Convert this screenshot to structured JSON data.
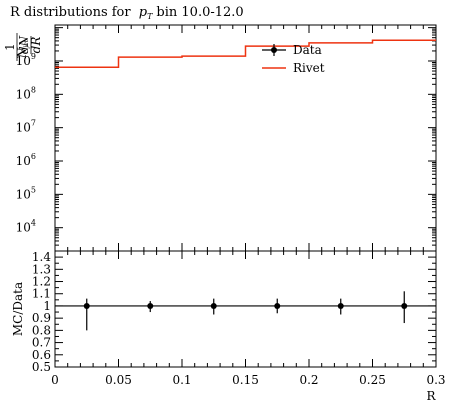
{
  "chart_data": [
    {
      "type": "line",
      "panel": "main",
      "title": "R distributions for p_T bin 10.0-12.0",
      "title_parts": {
        "prefix": "R distributions for",
        "var": "p",
        "sub": "T",
        "suffix": "bin 10.0-12.0"
      },
      "ylabel": "1/N_jet dN/dR",
      "ylabel_parts": {
        "one": "1",
        "njet": "N",
        "njet_sub": "jet",
        "dN": "dN",
        "dR": "dR"
      },
      "yscale": "log",
      "ylim": [
        2000,
        12000000000
      ],
      "xlim": [
        0,
        0.3
      ],
      "y_ticks": [
        {
          "base": "10",
          "exp": "4",
          "value": 10000
        },
        {
          "base": "10",
          "exp": "5",
          "value": 100000
        },
        {
          "base": "10",
          "exp": "6",
          "value": 1000000
        },
        {
          "base": "10",
          "exp": "7",
          "value": 10000000
        },
        {
          "base": "10",
          "exp": "8",
          "value": 100000000
        },
        {
          "base": "10",
          "exp": "9",
          "value": 1000000000
        }
      ],
      "legend": {
        "placement": "top-right",
        "entries": [
          "Data",
          "Rivet"
        ]
      },
      "series": [
        {
          "name": "Rivet",
          "color": "#ee3311",
          "style": "step",
          "bins": [
            [
              0,
              0.05
            ],
            [
              0.05,
              0.1
            ],
            [
              0.1,
              0.15
            ],
            [
              0.15,
              0.2
            ],
            [
              0.2,
              0.25
            ],
            [
              0.25,
              0.3
            ]
          ],
          "values": [
            650000000,
            1300000000,
            1400000000,
            2800000000,
            3500000000,
            4200000000
          ]
        }
      ]
    },
    {
      "type": "scatter",
      "panel": "ratio",
      "ylabel": "MC/Data",
      "xlabel": "R",
      "xlim": [
        0,
        0.3
      ],
      "ylim": [
        0.5,
        1.45
      ],
      "y_ticks": [
        "0.5",
        "0.6",
        "0.7",
        "0.8",
        "0.9",
        "1",
        "1.1",
        "1.2",
        "1.3",
        "1.4"
      ],
      "x_ticks": [
        "0",
        "0.05",
        "0.1",
        "0.15",
        "0.2",
        "0.25",
        "0.3"
      ],
      "reference_line": 1,
      "series": [
        {
          "name": "Data",
          "color": "#000000",
          "x": [
            0.025,
            0.075,
            0.125,
            0.175,
            0.225,
            0.275
          ],
          "y": [
            1,
            1,
            1,
            1,
            1,
            1
          ],
          "err_low": [
            0.2,
            0.05,
            0.07,
            0.06,
            0.07,
            0.14
          ],
          "err_high": [
            0.06,
            0.04,
            0.06,
            0.06,
            0.06,
            0.12
          ]
        }
      ]
    }
  ]
}
